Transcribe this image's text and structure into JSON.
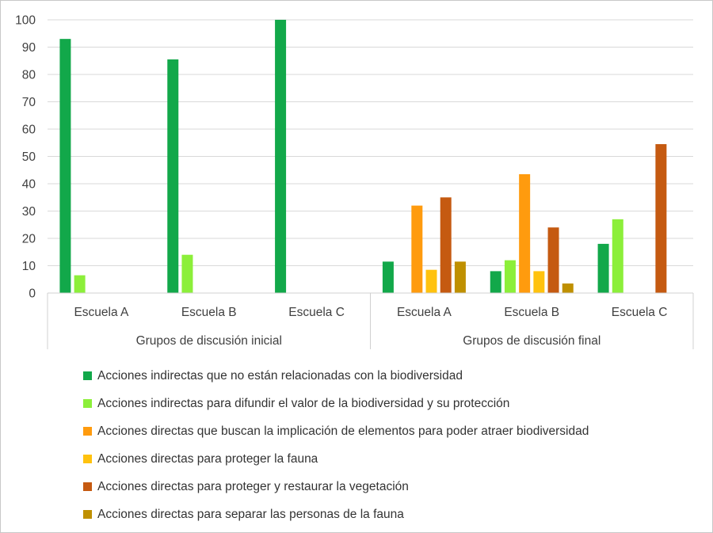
{
  "chart_data": {
    "type": "bar",
    "title": "",
    "xlabel": "",
    "ylabel": "",
    "ylim": [
      0,
      100
    ],
    "yticks": [
      0,
      10,
      20,
      30,
      40,
      50,
      60,
      70,
      80,
      90,
      100
    ],
    "grid": true,
    "legend_position": "bottom",
    "groups": [
      {
        "label": "Grupos de discusión inicial",
        "categories": [
          "Escuela A",
          "Escuela B",
          "Escuela C"
        ]
      },
      {
        "label": "Grupos de discusión final",
        "categories": [
          "Escuela A",
          "Escuela B",
          "Escuela C"
        ]
      }
    ],
    "categories": [
      "Escuela A",
      "Escuela B",
      "Escuela C",
      "Escuela A",
      "Escuela B",
      "Escuela C"
    ],
    "series": [
      {
        "name": "Acciones indirectas que no están relacionadas con la biodiversidad",
        "color": "#12a84a",
        "values": [
          93,
          85.5,
          100,
          11.5,
          8,
          18
        ]
      },
      {
        "name": "Acciones indirectas para difundir el valor de la biodiversidad y su protección",
        "color": "#8cef3a",
        "values": [
          6.5,
          14,
          0,
          0,
          12,
          27
        ]
      },
      {
        "name": "Acciones directas que buscan la implicación de elementos para poder atraer biodiversidad",
        "color": "#ff9b0e",
        "values": [
          0,
          0,
          0,
          32,
          43.5,
          0
        ]
      },
      {
        "name": "Acciones directas para proteger la fauna",
        "color": "#ffc20e",
        "values": [
          0,
          0,
          0,
          8.5,
          8,
          0
        ]
      },
      {
        "name": "Acciones directas para proteger y restaurar la vegetación",
        "color": "#c55a11",
        "values": [
          0,
          0,
          0,
          35,
          24,
          54.5
        ]
      },
      {
        "name": "Acciones directas para separar las personas de la fauna",
        "color": "#bf9000",
        "values": [
          0,
          0,
          0,
          11.5,
          3.5,
          0
        ]
      }
    ]
  }
}
